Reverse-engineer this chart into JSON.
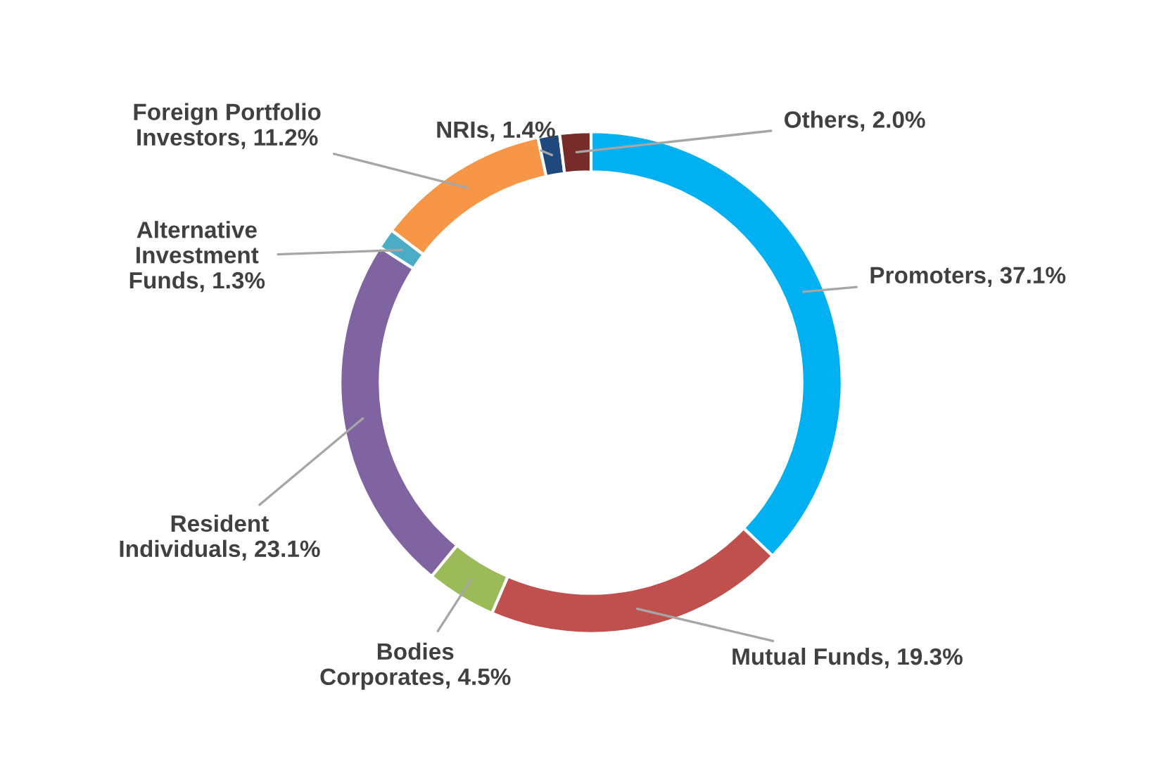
{
  "chart_data": {
    "type": "donut",
    "categories": [
      "Promoters",
      "Mutual Funds",
      "Bodies Corporates",
      "Resident Individuals",
      "Alternative Investment Funds",
      "Foreign Portfolio Investors",
      "NRIs",
      "Others"
    ],
    "values": [
      37.1,
      19.3,
      4.5,
      23.1,
      1.3,
      11.2,
      1.4,
      2.0
    ],
    "value_labels": [
      "37.1%",
      "19.3%",
      "4.5%",
      "23.1%",
      "1.3%",
      "11.2%",
      "1.4%",
      "2.0%"
    ],
    "colors": [
      "#00b0f0",
      "#c0504d",
      "#9bbb59",
      "#8064a2",
      "#4bacc6",
      "#f79646",
      "#1f497d",
      "#772c2a"
    ],
    "legend": false
  }
}
